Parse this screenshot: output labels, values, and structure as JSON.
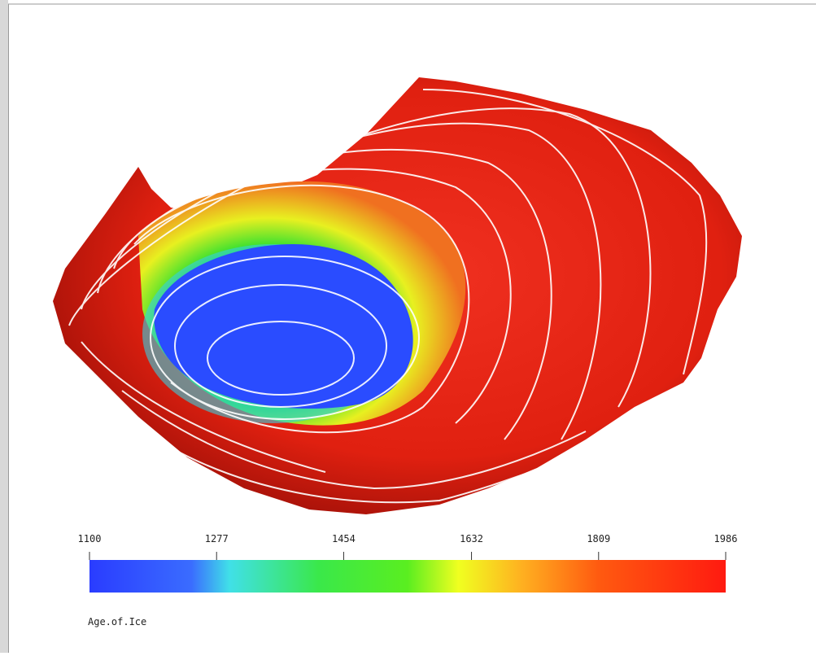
{
  "colorbar": {
    "ticks": [
      1100,
      1277,
      1454,
      1632,
      1809,
      1986
    ],
    "label": "Age.of.Ice"
  }
}
